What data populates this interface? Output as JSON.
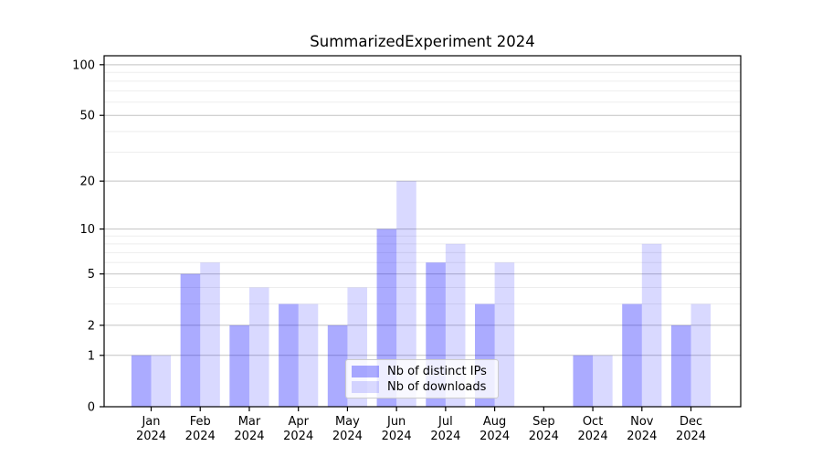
{
  "chart_data": {
    "type": "bar",
    "title": "SummarizedExperiment 2024",
    "xlabel": "",
    "ylabel": "",
    "yscale": "log1p",
    "ylim": [
      0,
      113
    ],
    "yticks": [
      0,
      1,
      2,
      5,
      10,
      20,
      50,
      100
    ],
    "minor_yticks": [
      3,
      4,
      6,
      7,
      8,
      9,
      30,
      40,
      60,
      70,
      80,
      90
    ],
    "categories": [
      "Jan",
      "Feb",
      "Mar",
      "Apr",
      "May",
      "Jun",
      "Jul",
      "Aug",
      "Sep",
      "Oct",
      "Nov",
      "Dec"
    ],
    "year_label": "2024",
    "series": [
      {
        "name": "Nb of distinct IPs",
        "color": "rgba(0,0,255,0.33)",
        "values": [
          1,
          5,
          2,
          3,
          2,
          10,
          6,
          3,
          0,
          1,
          3,
          2
        ]
      },
      {
        "name": "Nb of downloads",
        "color": "rgba(0,0,255,0.15)",
        "values": [
          1,
          6,
          4,
          3,
          4,
          20,
          8,
          6,
          0,
          1,
          8,
          3
        ]
      }
    ],
    "legend_position": "lower center",
    "grid": {
      "major_color": "#c3c3c3",
      "minor_color": "#ededed",
      "axis_color": "#000000"
    },
    "background_color": "#ffffff"
  }
}
